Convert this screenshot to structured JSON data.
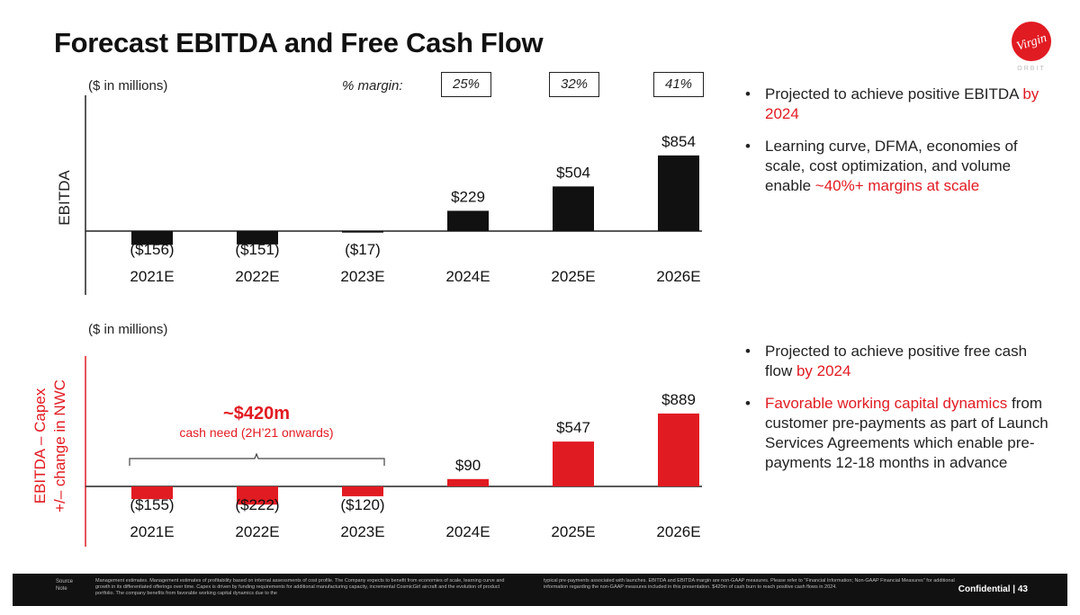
{
  "page": {
    "title": "Forecast EBITDA and Free Cash Flow",
    "logo_text": "Virgin",
    "logo_subtext": "ORBIT",
    "accent_color": "#e11b22",
    "footer": {
      "source_label": "Source\nNote",
      "note_left": "Management estimates. Management estimates of profitability based on internal assessments of cost profile. The Company expects to benefit from economies of scale, learning curve and growth in its differentiated offerings over time. Capex is driven by funding requirements for additional manufacturing capacity, incremental CosmicGirl aircraft and the evolution of product portfolio. The company benefits from favorable working capital dynamics due to the",
      "note_right": "typical pre-payments associated with launches. EBITDA and EBITDA margin are non-GAAP measures. Please refer to \"Financial Information; Non-GAAP Financial Measures\" for additional information regarding the non-GAAP measures included in this presentation. $420m of cash burn to reach positive cash flows in 2024.",
      "confidential": "Confidential  |  43"
    }
  },
  "ebitda_panel": {
    "units": "($ in millions)",
    "margin_label": "% margin:",
    "margins": [
      "25%",
      "32%",
      "41%"
    ],
    "bullets": [
      {
        "text": "Projected to achieve positive EBITDA ",
        "highlight": "by 2024"
      },
      {
        "text": "Learning curve, DFMA, economies of scale, cost optimization, and volume enable ",
        "highlight": "~40%+ margins at scale"
      }
    ]
  },
  "fcf_panel": {
    "units": "($ in millions)",
    "annotation_value": "~$420m",
    "annotation_text": "cash need (2H’21 onwards)",
    "bullets": [
      {
        "text": "Projected to achieve positive free cash flow ",
        "highlight": "by 2024"
      },
      {
        "highlight": "Favorable working capital dynamics",
        "text": " from customer pre-payments as part of Launch Services Agreements which enable pre-payments 12-18 months in advance"
      }
    ]
  },
  "chart_data": [
    {
      "type": "bar",
      "ylabel": "EBITDA",
      "categories": [
        "2021E",
        "2022E",
        "2023E",
        "2024E",
        "2025E",
        "2026E"
      ],
      "values": [
        -156,
        -151,
        -17,
        229,
        504,
        854
      ],
      "data_labels": [
        "($156)",
        "($151)",
        "($17)",
        "$229",
        "$504",
        "$854"
      ],
      "color": "#111111"
    },
    {
      "type": "bar",
      "ylabel": "EBITDA – Capex +/– change in NWC",
      "categories": [
        "2021E",
        "2022E",
        "2023E",
        "2024E",
        "2025E",
        "2026E"
      ],
      "values": [
        -155,
        -222,
        -120,
        90,
        547,
        889
      ],
      "data_labels": [
        "($155)",
        "($222)",
        "($120)",
        "$90",
        "$547",
        "$889"
      ],
      "color": "#e11b22"
    }
  ]
}
